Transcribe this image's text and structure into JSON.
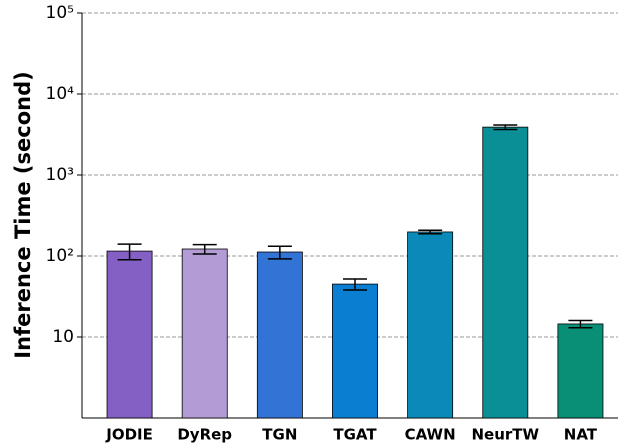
{
  "chart_data": {
    "type": "bar",
    "ylabel": "Inference Time (second)",
    "categories": [
      "JODIE",
      "DyRep",
      "TGN",
      "TGAT",
      "CAWN",
      "NeurTW",
      "NAT"
    ],
    "values": [
      115,
      122,
      112,
      45,
      198,
      3900,
      14.5
    ],
    "errors": [
      25,
      16,
      20,
      7,
      10,
      250,
      1.5
    ],
    "colors": [
      "#8560c4",
      "#b39cd6",
      "#3273d6",
      "#0a7fd2",
      "#0a8ab8",
      "#0a8f96",
      "#0a8f77"
    ],
    "log_scale": true,
    "ylim": [
      1,
      100000
    ],
    "yticks": [
      10,
      {
        "value": 100,
        "label": "10²"
      },
      {
        "value": 1000,
        "label": "10³"
      },
      {
        "value": 10000,
        "label": "10⁴"
      },
      {
        "value": 100000,
        "label": "10⁵"
      }
    ],
    "grid": true
  }
}
